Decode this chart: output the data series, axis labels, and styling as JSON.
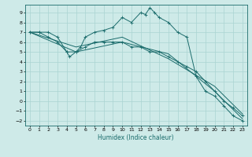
{
  "title": "",
  "xlabel": "Humidex (Indice chaleur)",
  "xlim": [
    -0.5,
    23.5
  ],
  "ylim": [
    -2.5,
    9.8
  ],
  "xticks": [
    0,
    1,
    2,
    3,
    4,
    5,
    6,
    7,
    8,
    9,
    10,
    11,
    12,
    13,
    14,
    15,
    16,
    17,
    18,
    19,
    20,
    21,
    22,
    23
  ],
  "yticks": [
    -2,
    -1,
    0,
    1,
    2,
    3,
    4,
    5,
    6,
    7,
    8,
    9
  ],
  "bg_color": "#ceeae8",
  "line_color": "#1a6b6b",
  "grid_color": "#aad4d2",
  "lines": [
    {
      "x": [
        0,
        1,
        2,
        3,
        4,
        4.3,
        5,
        5.5,
        6,
        7,
        8,
        9,
        10,
        11,
        12,
        12.5,
        13,
        13.5,
        14,
        15,
        16,
        17,
        18,
        19,
        20,
        21,
        22,
        23
      ],
      "y": [
        7,
        7,
        7,
        6.5,
        5,
        4.5,
        5,
        5.5,
        6.5,
        7,
        7.2,
        7.5,
        8.5,
        8,
        9,
        8.8,
        9.5,
        9,
        8.5,
        8,
        7,
        6.5,
        2.5,
        1,
        0.5,
        -0.5,
        -1.5,
        -2
      ],
      "marker": true
    },
    {
      "x": [
        0,
        1,
        2,
        3,
        4,
        5,
        6,
        7,
        8,
        9,
        10,
        11,
        12,
        13,
        14,
        15,
        16,
        17,
        18,
        19,
        20,
        21,
        22,
        23
      ],
      "y": [
        7,
        7,
        6.5,
        6,
        5,
        5,
        5.5,
        6,
        6,
        6,
        6,
        5.5,
        5.5,
        5,
        5,
        4.5,
        4,
        3.5,
        3,
        2,
        1,
        0,
        -0.7,
        -1.5
      ],
      "marker": true
    },
    {
      "x": [
        0,
        5,
        10,
        15,
        20,
        23
      ],
      "y": [
        7,
        5,
        6,
        4.8,
        1,
        -1.8
      ],
      "marker": false
    },
    {
      "x": [
        0,
        5,
        10,
        15,
        20,
        23
      ],
      "y": [
        7,
        5.5,
        6.5,
        4.3,
        1.5,
        -1.3
      ],
      "marker": false
    }
  ]
}
